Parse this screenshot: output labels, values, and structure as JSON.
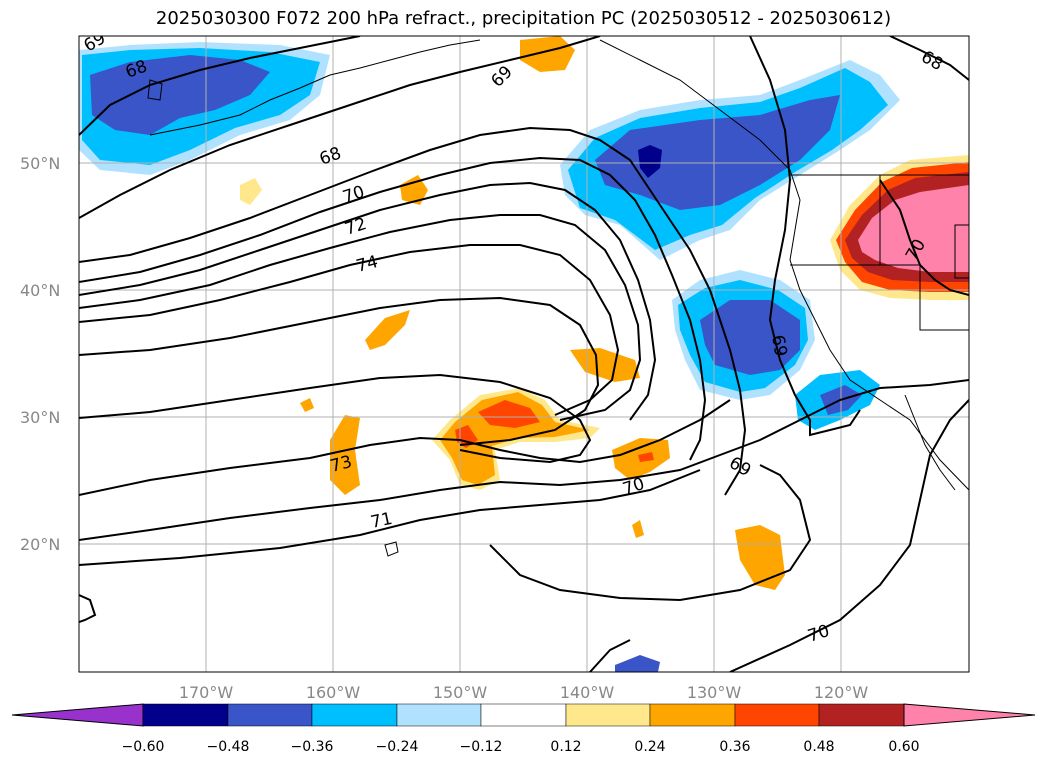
{
  "title": "2025030300 F072 200 hPa refract., precipitation PC (2025030512 - 2025030612)",
  "lat_labels": [
    "50°N",
    "40°N",
    "30°N",
    "20°N"
  ],
  "lon_labels": [
    "170°W",
    "160°W",
    "150°W",
    "140°W",
    "130°W",
    "120°W"
  ],
  "colorbar": {
    "ticks": [
      "−0.60",
      "−0.48",
      "−0.36",
      "−0.24",
      "−0.12",
      "0.12",
      "0.24",
      "0.36",
      "0.48",
      "0.60"
    ],
    "colors": [
      "#9932cc",
      "#00008b",
      "#3a55c8",
      "#00bfff",
      "#b0e2ff",
      "#ffffff",
      "#ffe88c",
      "#ffa500",
      "#ff4500",
      "#b22222",
      "#ff82ab"
    ]
  },
  "contour_labels": [
    "69",
    "68",
    "68",
    "69",
    "70",
    "72",
    "74",
    "68",
    "70",
    "69",
    "73",
    "71",
    "70",
    "69",
    "70"
  ]
}
